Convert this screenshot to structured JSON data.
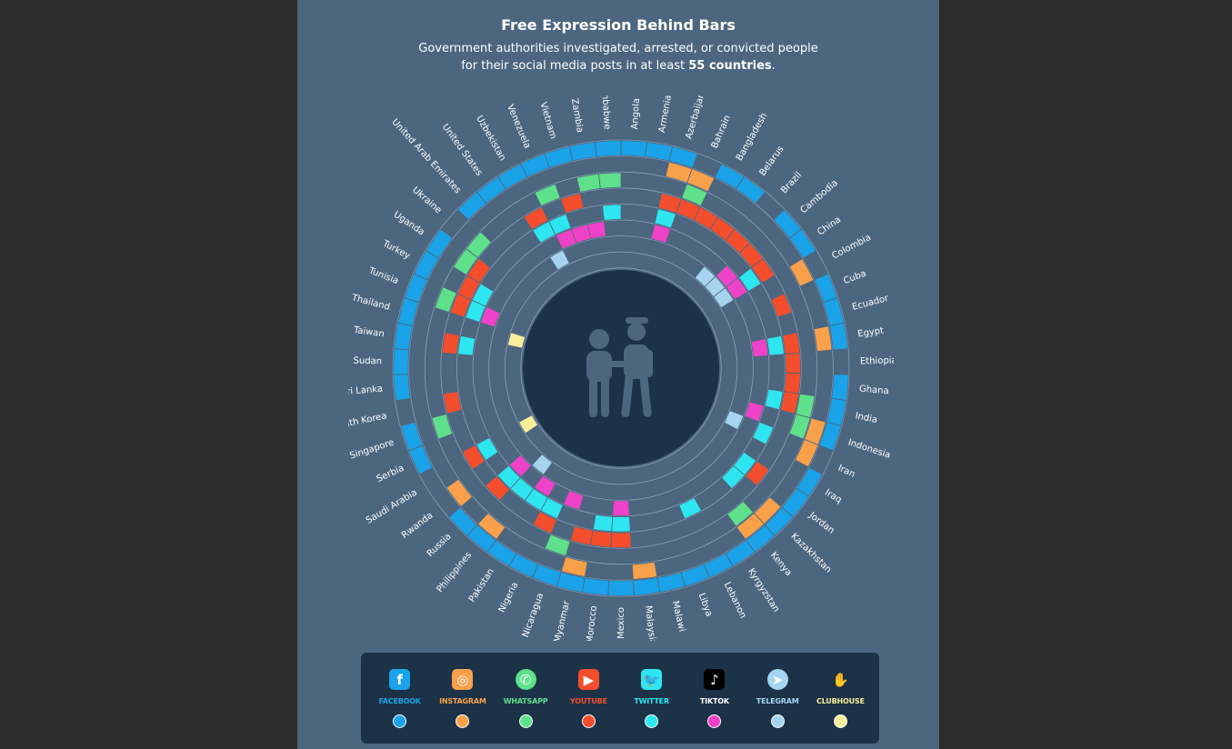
{
  "header": {
    "title": "Free Expression Behind Bars",
    "subtitle_line1": "Government authorities investigated, arrested, or convicted people",
    "subtitle_line2_prefix": "for their social media posts in at least ",
    "subtitle_line2_bold": "55 countries",
    "subtitle_line2_suffix": "."
  },
  "chart_data": {
    "type": "radial-heatmap",
    "rings_outer_to_inner": [
      "facebook",
      "instagram",
      "whatsapp",
      "youtube",
      "twitter",
      "tiktok",
      "telegram",
      "clubhouse"
    ],
    "colors": {
      "facebook": "#1aa3e8",
      "instagram": "#f9a04a",
      "whatsapp": "#5fe08a",
      "youtube": "#f44e2c",
      "twitter": "#2ee6f0",
      "tiktok": "#f042c8",
      "telegram": "#a4d4ef",
      "clubhouse": "#f8ee9a"
    },
    "center_icon": "arrest-icon",
    "countries": [
      {
        "name": "Angola",
        "platforms": [
          "facebook"
        ]
      },
      {
        "name": "Armenia",
        "platforms": [
          "facebook"
        ]
      },
      {
        "name": "Azerbaijan",
        "platforms": [
          "facebook",
          "instagram",
          "youtube",
          "twitter",
          "tiktok"
        ]
      },
      {
        "name": "Bahrain",
        "platforms": [
          "instagram",
          "whatsapp",
          "youtube"
        ]
      },
      {
        "name": "Bangladesh",
        "platforms": [
          "facebook",
          "youtube"
        ]
      },
      {
        "name": "Belarus",
        "platforms": [
          "facebook",
          "youtube"
        ]
      },
      {
        "name": "Brazil",
        "platforms": [
          "youtube",
          "telegram"
        ]
      },
      {
        "name": "Cambodia",
        "platforms": [
          "facebook",
          "youtube",
          "tiktok",
          "telegram"
        ]
      },
      {
        "name": "China",
        "platforms": [
          "facebook",
          "youtube",
          "twitter",
          "tiktok",
          "telegram"
        ]
      },
      {
        "name": "Colombia",
        "platforms": [
          "instagram"
        ]
      },
      {
        "name": "Cuba",
        "platforms": [
          "facebook",
          "youtube"
        ]
      },
      {
        "name": "Ecuador",
        "platforms": [
          "facebook"
        ]
      },
      {
        "name": "Egypt",
        "platforms": [
          "facebook",
          "instagram",
          "youtube",
          "twitter",
          "tiktok"
        ]
      },
      {
        "name": "Ethiopia",
        "platforms": [
          "youtube"
        ]
      },
      {
        "name": "Ghana",
        "platforms": [
          "facebook",
          "youtube"
        ]
      },
      {
        "name": "India",
        "platforms": [
          "facebook",
          "whatsapp",
          "youtube",
          "twitter"
        ]
      },
      {
        "name": "Indonesia",
        "platforms": [
          "facebook",
          "instagram",
          "whatsapp",
          "tiktok"
        ]
      },
      {
        "name": "Iran",
        "platforms": [
          "instagram",
          "twitter",
          "telegram"
        ]
      },
      {
        "name": "Iraq",
        "platforms": [
          "facebook"
        ]
      },
      {
        "name": "Jordan",
        "platforms": [
          "facebook",
          "youtube",
          "twitter"
        ]
      },
      {
        "name": "Kazakhstan",
        "platforms": [
          "facebook",
          "instagram",
          "twitter"
        ]
      },
      {
        "name": "Kenya",
        "platforms": [
          "facebook",
          "instagram",
          "whatsapp"
        ]
      },
      {
        "name": "Kyrgyzstan",
        "platforms": [
          "facebook"
        ]
      },
      {
        "name": "Lebanon",
        "platforms": [
          "facebook",
          "twitter"
        ]
      },
      {
        "name": "Libya",
        "platforms": [
          "facebook"
        ]
      },
      {
        "name": "Malawi",
        "platforms": [
          "facebook"
        ]
      },
      {
        "name": "Malaysia",
        "platforms": [
          "facebook",
          "instagram"
        ]
      },
      {
        "name": "Mexico",
        "platforms": [
          "facebook",
          "youtube",
          "twitter",
          "tiktok"
        ]
      },
      {
        "name": "Morocco",
        "platforms": [
          "facebook",
          "youtube",
          "twitter"
        ]
      },
      {
        "name": "Myanmar",
        "platforms": [
          "facebook",
          "instagram",
          "youtube"
        ]
      },
      {
        "name": "Nicaragua",
        "platforms": [
          "facebook",
          "whatsapp",
          "tiktok"
        ]
      },
      {
        "name": "Nigeria",
        "platforms": [
          "facebook",
          "youtube",
          "twitter"
        ]
      },
      {
        "name": "Pakistan",
        "platforms": [
          "facebook",
          "twitter",
          "tiktok"
        ]
      },
      {
        "name": "Philippines",
        "platforms": [
          "facebook",
          "instagram",
          "twitter",
          "telegram"
        ]
      },
      {
        "name": "Russia",
        "platforms": [
          "facebook",
          "youtube",
          "twitter",
          "tiktok"
        ]
      },
      {
        "name": "Rwanda",
        "platforms": [
          "instagram"
        ]
      },
      {
        "name": "Saudi Arabia",
        "platforms": [
          "youtube",
          "twitter",
          "clubhouse"
        ]
      },
      {
        "name": "Serbia",
        "platforms": [
          "facebook"
        ]
      },
      {
        "name": "Singapore",
        "platforms": [
          "facebook",
          "whatsapp"
        ]
      },
      {
        "name": "South Korea",
        "platforms": [
          "youtube"
        ]
      },
      {
        "name": "Sri Lanka",
        "platforms": [
          "facebook"
        ]
      },
      {
        "name": "Sudan",
        "platforms": [
          "facebook"
        ]
      },
      {
        "name": "Taiwan",
        "platforms": [
          "facebook",
          "youtube",
          "twitter"
        ]
      },
      {
        "name": "Thailand",
        "platforms": [
          "facebook",
          "clubhouse"
        ]
      },
      {
        "name": "Tunisia",
        "platforms": [
          "facebook",
          "whatsapp",
          "youtube",
          "twitter",
          "tiktok"
        ]
      },
      {
        "name": "Turkey",
        "platforms": [
          "facebook",
          "youtube",
          "twitter"
        ]
      },
      {
        "name": "Uganda",
        "platforms": [
          "facebook",
          "whatsapp",
          "youtube"
        ]
      },
      {
        "name": "Ukraine",
        "platforms": [
          "whatsapp"
        ]
      },
      {
        "name": "United Arab Emirates",
        "platforms": [
          "facebook"
        ]
      },
      {
        "name": "United States",
        "platforms": [
          "facebook"
        ]
      },
      {
        "name": "Uzbekistan",
        "platforms": [
          "facebook",
          "youtube",
          "twitter",
          "telegram"
        ]
      },
      {
        "name": "Venezuela",
        "platforms": [
          "facebook",
          "whatsapp",
          "twitter",
          "tiktok"
        ]
      },
      {
        "name": "Vietnam",
        "platforms": [
          "facebook",
          "youtube",
          "tiktok"
        ]
      },
      {
        "name": "Zambia",
        "platforms": [
          "facebook",
          "whatsapp",
          "tiktok"
        ]
      },
      {
        "name": "Zimbabwe",
        "platforms": [
          "facebook",
          "whatsapp",
          "twitter"
        ]
      }
    ]
  },
  "legend": [
    {
      "key": "facebook",
      "label": "FACEBOOK",
      "icon": "facebook-icon",
      "glyph": "f",
      "color": "#1aa3e8"
    },
    {
      "key": "instagram",
      "label": "INSTAGRAM",
      "icon": "instagram-icon",
      "glyph": "◎",
      "color": "#f9a04a"
    },
    {
      "key": "whatsapp",
      "label": "WHATSAPP",
      "icon": "whatsapp-icon",
      "glyph": "✆",
      "color": "#5fe08a"
    },
    {
      "key": "youtube",
      "label": "YOUTUBE",
      "icon": "youtube-icon",
      "glyph": "▶",
      "color": "#f44e2c"
    },
    {
      "key": "twitter",
      "label": "TWITTER",
      "icon": "twitter-icon",
      "glyph": "🐦",
      "color": "#2ee6f0"
    },
    {
      "key": "tiktok",
      "label": "TIKTOK",
      "icon": "tiktok-icon",
      "glyph": "♪",
      "color": "#f042c8"
    },
    {
      "key": "telegram",
      "label": "TELEGRAM",
      "icon": "telegram-icon",
      "glyph": "➤",
      "color": "#a4d4ef"
    },
    {
      "key": "clubhouse",
      "label": "CLUBHOUSE",
      "icon": "clubhouse-icon",
      "glyph": "✋",
      "color": "#f8ee9a"
    }
  ]
}
